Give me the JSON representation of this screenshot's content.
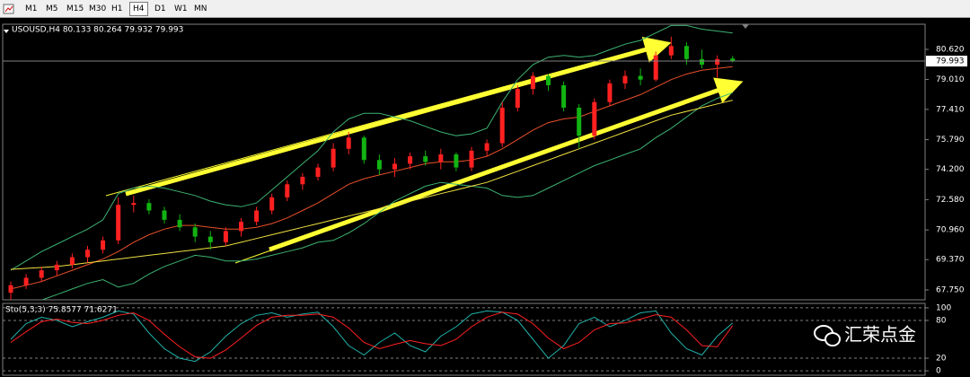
{
  "toolbar": {
    "timeframes": [
      "M1",
      "M5",
      "M15",
      "M30",
      "H1",
      "H4",
      "D1",
      "W1",
      "MN"
    ],
    "active": "H4"
  },
  "watermark": "汇荣点金",
  "chart_data": [
    {
      "type": "candlestick",
      "title": "USOUSD,H4 80.133 80.264 79.932 79.993",
      "ylim": [
        67.22,
        81.965
      ],
      "yticks": [
        {
          "value": 80.62,
          "label": "80.620"
        },
        {
          "value": 79.01,
          "label": "79.010"
        },
        {
          "value": 77.41,
          "label": "77.410"
        },
        {
          "value": 75.79,
          "label": "75.790"
        },
        {
          "value": 74.2,
          "label": "74.200"
        },
        {
          "value": 72.58,
          "label": "72.580"
        },
        {
          "value": 70.96,
          "label": "70.960"
        },
        {
          "value": 69.37,
          "label": "69.370"
        },
        {
          "value": 67.75,
          "label": "67.750"
        }
      ],
      "last": {
        "value": 79.993,
        "label": "79.993"
      },
      "up_color": "#ff2020",
      "down_color": "#12b312",
      "candles": [
        [
          67.6,
          68.2,
          67.2,
          68.0
        ],
        [
          68.0,
          68.6,
          67.8,
          68.4
        ],
        [
          68.4,
          69.0,
          68.2,
          68.8
        ],
        [
          68.8,
          69.3,
          68.5,
          69.1
        ],
        [
          69.1,
          69.7,
          68.9,
          69.5
        ],
        [
          69.5,
          70.1,
          69.2,
          69.9
        ],
        [
          69.9,
          70.6,
          69.7,
          70.4
        ],
        [
          70.4,
          72.7,
          70.2,
          72.3
        ],
        [
          72.3,
          72.8,
          71.9,
          72.4
        ],
        [
          72.4,
          72.6,
          71.8,
          72.0
        ],
        [
          72.0,
          72.2,
          71.3,
          71.5
        ],
        [
          71.5,
          71.8,
          70.9,
          71.1
        ],
        [
          71.1,
          71.3,
          70.3,
          70.6
        ],
        [
          70.6,
          70.9,
          69.9,
          70.3
        ],
        [
          70.3,
          71.1,
          70.1,
          70.9
        ],
        [
          70.9,
          71.6,
          70.6,
          71.4
        ],
        [
          71.4,
          72.2,
          71.2,
          72.0
        ],
        [
          72.0,
          72.9,
          71.8,
          72.7
        ],
        [
          72.7,
          73.6,
          72.5,
          73.4
        ],
        [
          73.4,
          74.0,
          73.1,
          73.8
        ],
        [
          73.8,
          74.5,
          73.6,
          74.3
        ],
        [
          74.3,
          75.6,
          74.1,
          75.3
        ],
        [
          75.3,
          76.2,
          75.0,
          75.9
        ],
        [
          75.9,
          76.0,
          74.5,
          74.7
        ],
        [
          74.7,
          75.0,
          73.9,
          74.2
        ],
        [
          74.2,
          74.8,
          73.8,
          74.5
        ],
        [
          74.5,
          75.1,
          74.2,
          74.9
        ],
        [
          74.9,
          75.2,
          74.4,
          74.6
        ],
        [
          74.6,
          75.3,
          74.2,
          75.0
        ],
        [
          75.0,
          75.1,
          74.1,
          74.3
        ],
        [
          74.3,
          75.4,
          74.1,
          75.2
        ],
        [
          75.2,
          75.8,
          74.9,
          75.6
        ],
        [
          75.6,
          77.8,
          75.4,
          77.5
        ],
        [
          77.5,
          78.7,
          77.3,
          78.5
        ],
        [
          78.5,
          79.4,
          78.2,
          79.2
        ],
        [
          79.2,
          79.3,
          78.4,
          78.7
        ],
        [
          78.7,
          78.9,
          77.3,
          77.5
        ],
        [
          77.5,
          77.7,
          75.3,
          76.0
        ],
        [
          76.0,
          78.0,
          75.8,
          77.8
        ],
        [
          77.8,
          79.0,
          77.6,
          78.8
        ],
        [
          78.8,
          79.5,
          78.5,
          79.2
        ],
        [
          79.2,
          79.6,
          78.7,
          79.0
        ],
        [
          79.0,
          80.5,
          78.9,
          80.3
        ],
        [
          80.3,
          81.3,
          80.1,
          80.8
        ],
        [
          80.8,
          81.0,
          79.8,
          80.1
        ],
        [
          80.1,
          80.6,
          79.6,
          79.8
        ],
        [
          79.8,
          80.3,
          79.1,
          80.1
        ],
        [
          80.133,
          80.264,
          79.932,
          79.993
        ]
      ],
      "series": [
        {
          "color": "#3cb371",
          "values": [
            68.8,
            69.3,
            69.8,
            70.2,
            70.6,
            71.0,
            71.5,
            72.9,
            73.2,
            73.3,
            73.2,
            73.0,
            72.8,
            72.5,
            72.3,
            72.2,
            72.4,
            73.1,
            73.8,
            74.5,
            75.2,
            76.2,
            76.9,
            77.2,
            77.2,
            77.0,
            76.8,
            76.5,
            76.2,
            76.0,
            76.1,
            76.4,
            77.8,
            79.0,
            79.8,
            80.2,
            80.3,
            80.2,
            80.3,
            80.6,
            80.9,
            81.1,
            81.5,
            81.9,
            81.9,
            81.7,
            81.6,
            81.5
          ]
        },
        {
          "color": "#3cb371",
          "values": [
            67.0,
            67.0,
            67.2,
            67.5,
            67.8,
            68.1,
            68.3,
            67.9,
            68.1,
            68.6,
            69.0,
            69.3,
            69.6,
            69.5,
            69.3,
            69.3,
            69.4,
            69.6,
            69.8,
            70.0,
            70.3,
            70.4,
            70.8,
            71.3,
            71.9,
            72.5,
            72.9,
            73.3,
            73.5,
            73.4,
            73.3,
            73.2,
            72.8,
            72.7,
            72.8,
            73.2,
            73.6,
            74.0,
            74.4,
            74.7,
            75.0,
            75.3,
            75.9,
            76.4,
            77.0,
            77.6,
            78.0,
            78.3
          ]
        },
        {
          "color": "#e8502a",
          "values": [
            67.8,
            68.0,
            68.2,
            68.5,
            68.8,
            69.1,
            69.4,
            69.8,
            70.3,
            70.7,
            71.0,
            71.2,
            71.2,
            71.1,
            71.0,
            71.0,
            71.1,
            71.3,
            71.6,
            72.0,
            72.4,
            72.9,
            73.4,
            73.7,
            73.9,
            74.1,
            74.3,
            74.5,
            74.6,
            74.6,
            74.7,
            74.9,
            75.3,
            75.8,
            76.3,
            76.7,
            76.9,
            77.0,
            77.3,
            77.6,
            77.9,
            78.2,
            78.6,
            79.0,
            79.3,
            79.5,
            79.6,
            79.7
          ]
        },
        {
          "color": "#f0e040",
          "values": [
            68.85,
            68.9,
            68.95,
            69.0,
            69.1,
            69.2,
            69.3,
            69.4,
            69.5,
            69.6,
            69.7,
            69.8,
            69.9,
            70.0,
            70.1,
            70.3,
            70.5,
            70.7,
            70.9,
            71.1,
            71.3,
            71.5,
            71.7,
            71.9,
            72.1,
            72.3,
            72.5,
            72.7,
            72.9,
            73.1,
            73.3,
            73.5,
            73.8,
            74.1,
            74.4,
            74.7,
            75.0,
            75.3,
            75.6,
            75.9,
            76.2,
            76.5,
            76.8,
            77.1,
            77.3,
            77.5,
            77.7,
            77.9
          ]
        }
      ]
    },
    {
      "type": "line",
      "title": "Sto(5,3,3) 75.8577 71.6271",
      "ylim": [
        -7,
        107
      ],
      "yticks": [
        100,
        80,
        20,
        0
      ],
      "grid": "dashed",
      "series": [
        {
          "color": "#20b2aa",
          "values": [
            50,
            75,
            85,
            80,
            70,
            78,
            85,
            95,
            90,
            60,
            35,
            20,
            15,
            30,
            55,
            75,
            88,
            92,
            85,
            90,
            93,
            70,
            40,
            25,
            45,
            60,
            40,
            30,
            55,
            70,
            90,
            95,
            93,
            80,
            50,
            20,
            40,
            75,
            85,
            70,
            80,
            92,
            95,
            60,
            35,
            25,
            55,
            75.8577
          ]
        },
        {
          "color": "#ff2020",
          "values": [
            45,
            62,
            78,
            82,
            77,
            75,
            80,
            88,
            92,
            80,
            58,
            38,
            22,
            20,
            33,
            52,
            72,
            85,
            88,
            88,
            90,
            85,
            68,
            45,
            35,
            42,
            48,
            43,
            40,
            50,
            70,
            85,
            93,
            90,
            75,
            52,
            35,
            45,
            65,
            75,
            76,
            82,
            89,
            85,
            65,
            40,
            38,
            71.6271
          ]
        }
      ]
    }
  ]
}
